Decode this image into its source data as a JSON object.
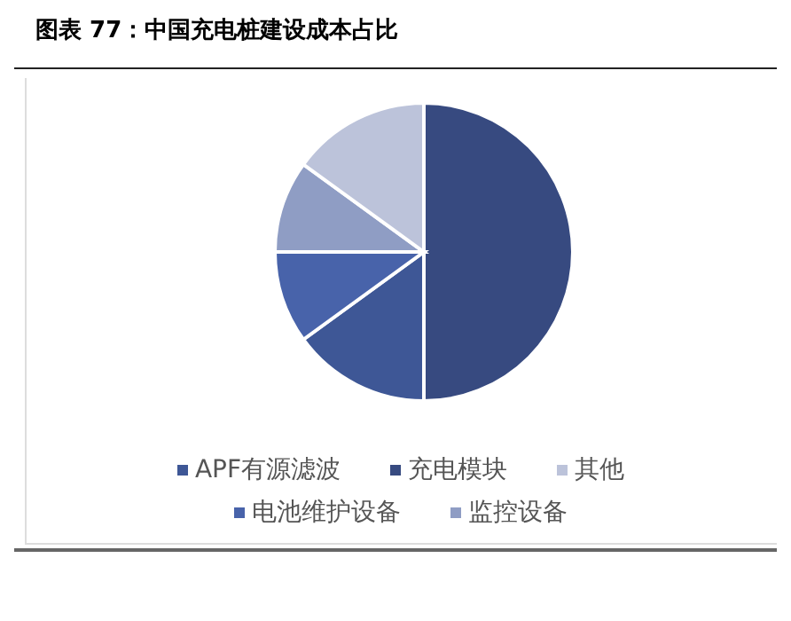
{
  "chart_data": {
    "type": "pie",
    "title": "图表 77：中国充电桩建设成本占比",
    "categories": [
      "充电模块",
      "APF有源滤波",
      "电池维护设备",
      "监控设备",
      "其他"
    ],
    "values": [
      50,
      15,
      10,
      10,
      15
    ],
    "colors": [
      "#374a80",
      "#3e5796",
      "#4863aa",
      "#8f9dc4",
      "#bcc3da"
    ],
    "legend": "bottom"
  }
}
